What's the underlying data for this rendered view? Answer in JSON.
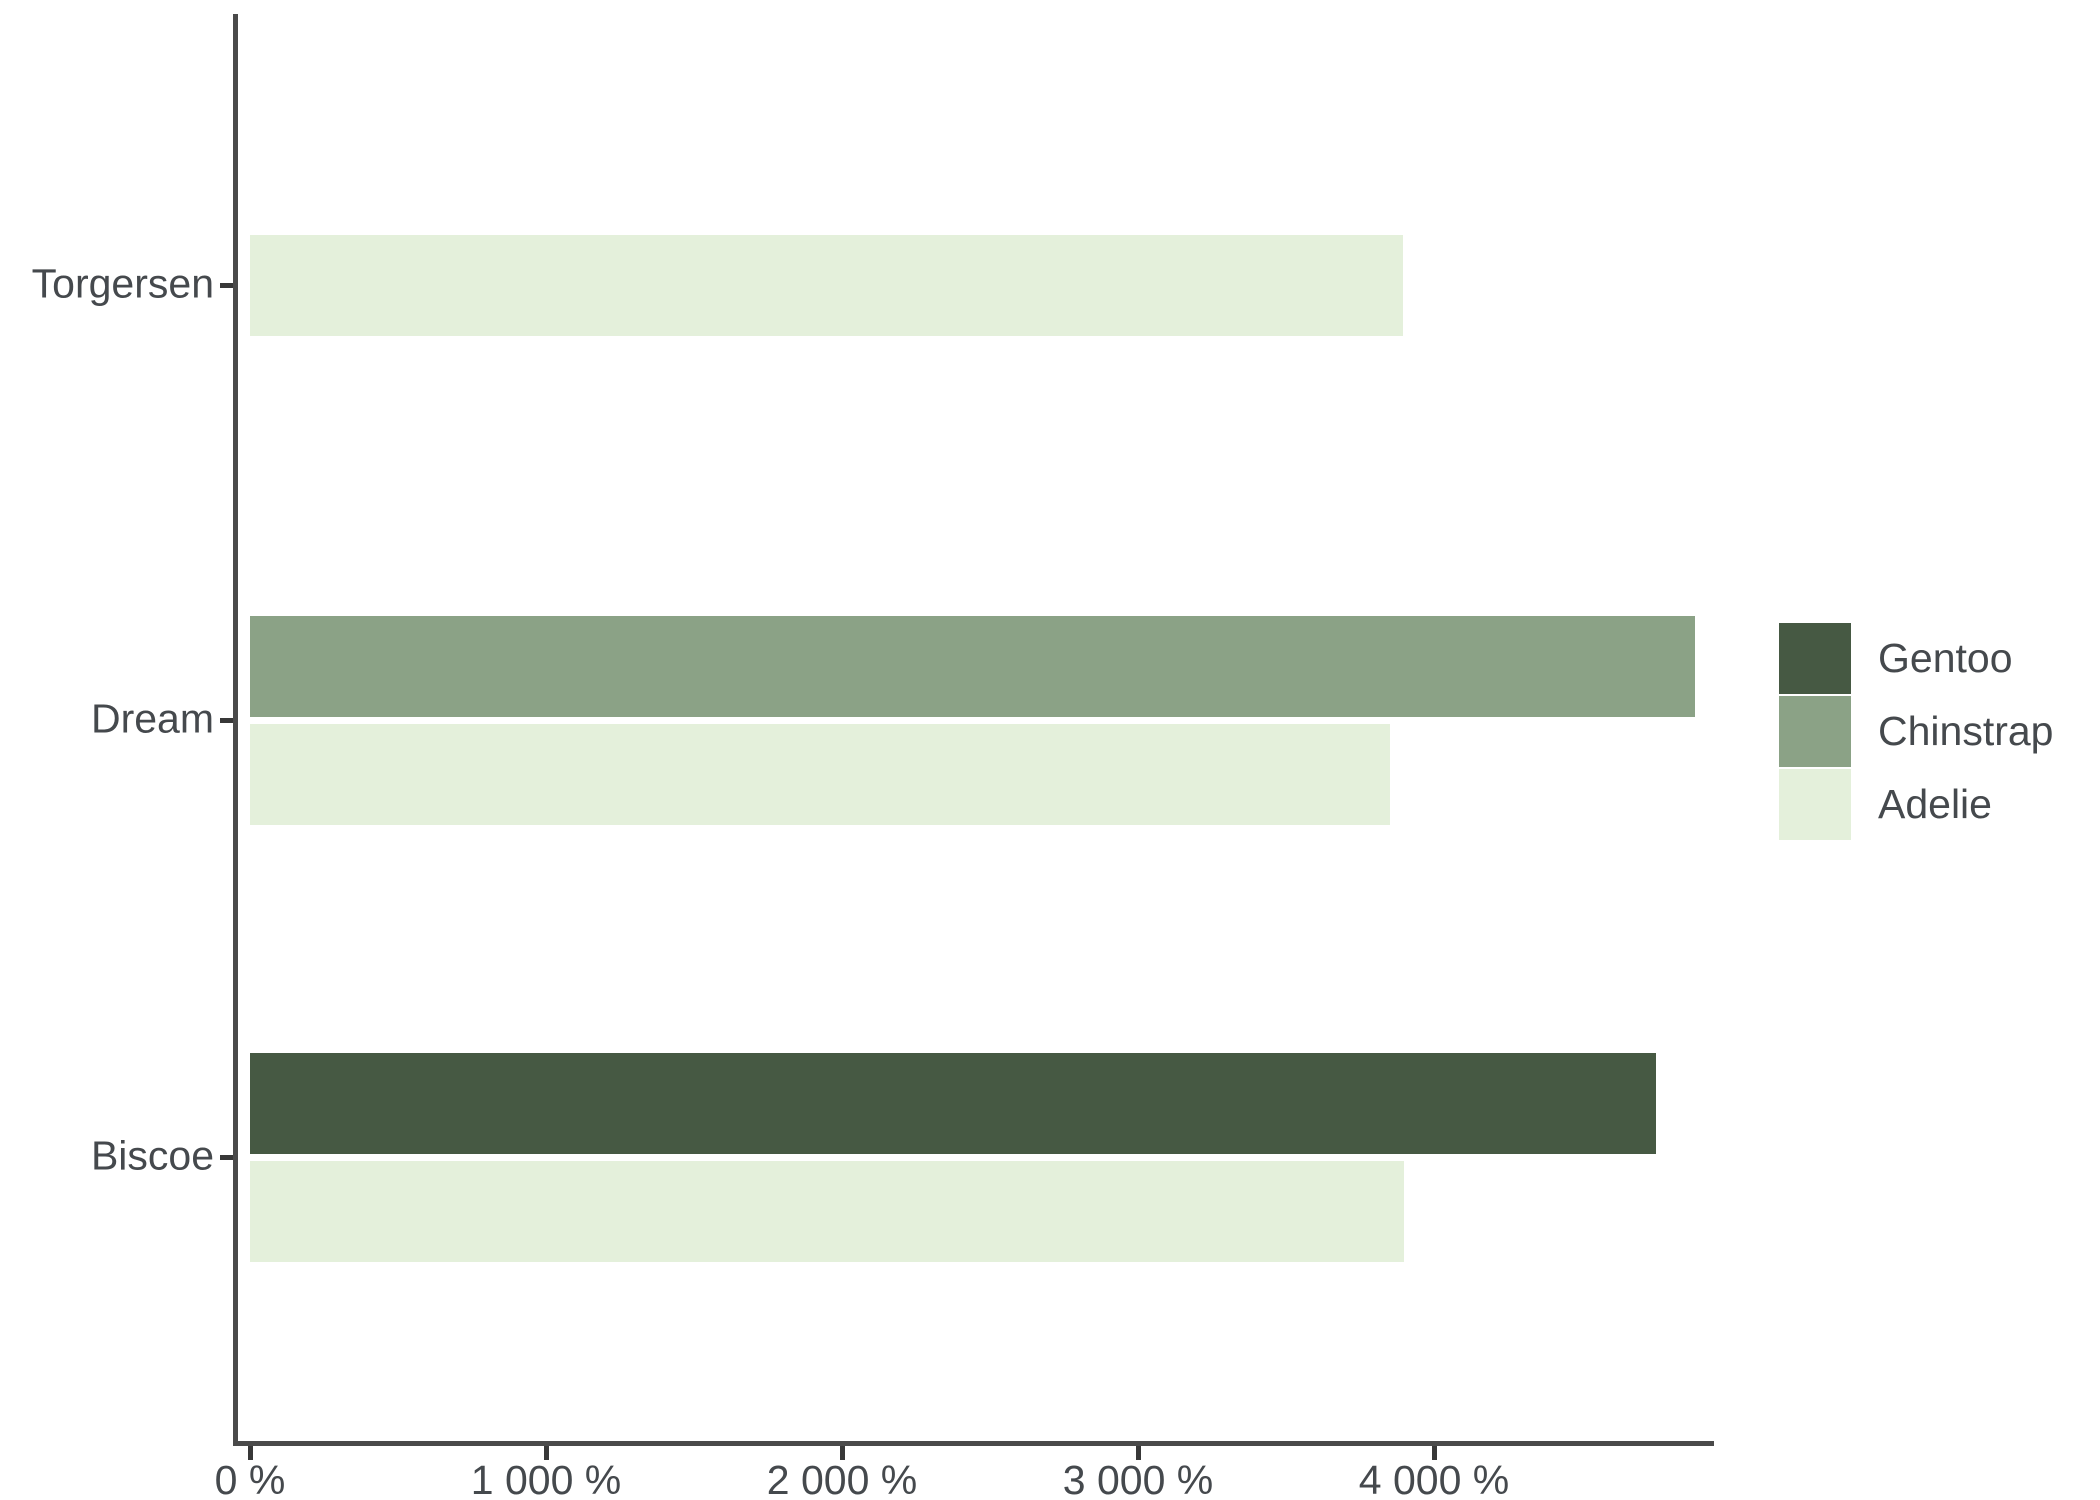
{
  "chart_data": {
    "type": "bar",
    "orientation": "horizontal",
    "title": "",
    "xlabel": "",
    "ylabel": "",
    "grid": false,
    "categories": [
      "Torgersen",
      "Dream",
      "Biscoe"
    ],
    "series": [
      {
        "name": "Gentoo",
        "color": "#465943",
        "values": [
          null,
          null,
          4750
        ]
      },
      {
        "name": "Chinstrap",
        "color": "#8BA286",
        "values": [
          null,
          4883,
          null
        ]
      },
      {
        "name": "Adelie",
        "color": "#E4F0DB",
        "values": [
          3895,
          3850,
          3898
        ]
      }
    ],
    "x_axis": {
      "range": [
        0,
        4950
      ],
      "ticks": [
        0,
        1000,
        2000,
        3000,
        4000
      ],
      "tick_labels": [
        "0 %",
        "1 000 %",
        "2 000 %",
        "3 000 %",
        "4 000 %"
      ]
    },
    "legend": {
      "position": "right",
      "entries": [
        "Gentoo",
        "Chinstrap",
        "Adelie"
      ]
    },
    "colors": {
      "axis": "#4a4a4a",
      "text": "#45494d",
      "background": "#ffffff"
    }
  }
}
